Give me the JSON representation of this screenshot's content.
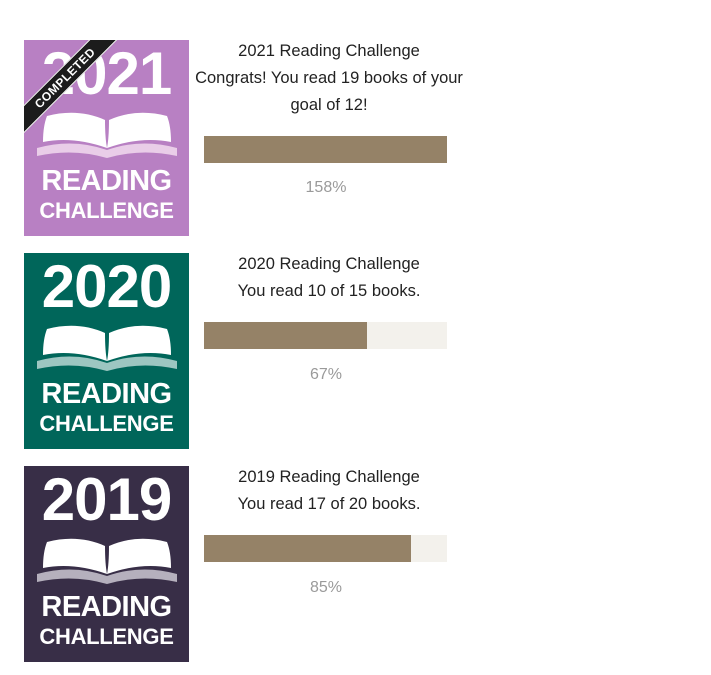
{
  "challenges": [
    {
      "badge": {
        "year": "2021",
        "line1": "READING",
        "line2": "CHALLENGE",
        "ribbon": "COMPLETED",
        "bg_color": "#b880c3",
        "book_shadow_color": "#e9cde8"
      },
      "title": "2021 Reading Challenge",
      "description": "Congrats! You read 19 books of your goal of 12!",
      "progress_fraction": 1.0,
      "percent_label": "158%"
    },
    {
      "badge": {
        "year": "2020",
        "line1": "READING",
        "line2": "CHALLENGE",
        "bg_color": "#00665a",
        "book_shadow_color": "#9dc6c1"
      },
      "title": "2020 Reading Challenge",
      "description": "You read 10 of 15 books.",
      "progress_fraction": 0.67,
      "percent_label": "67%"
    },
    {
      "badge": {
        "year": "2019",
        "line1": "READING",
        "line2": "CHALLENGE",
        "bg_color": "#382e47",
        "book_shadow_color": "#b5b0bd"
      },
      "title": "2019 Reading Challenge",
      "description": "You read 17 of 20 books.",
      "progress_fraction": 0.85,
      "percent_label": "85%"
    }
  ],
  "colors": {
    "bar_fill": "#958267",
    "bar_track": "#f3f1ec",
    "text": "#222222",
    "percent_text": "#9a9a9a"
  }
}
